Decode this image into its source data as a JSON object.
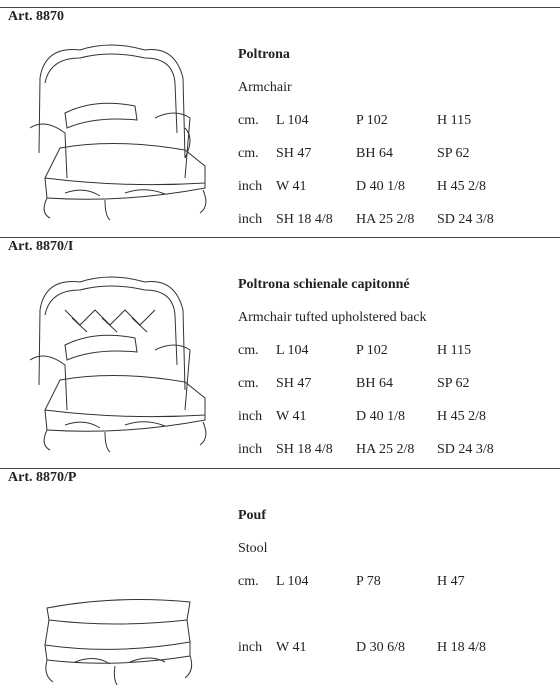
{
  "sections": [
    {
      "article": "Art. 8870",
      "title": "Poltrona",
      "subtitle": "Armchair",
      "rows": [
        {
          "unit": "cm.",
          "values": [
            "L 104",
            "P 102",
            "H 115"
          ]
        },
        {
          "unit": "cm.",
          "values": [
            "SH 47",
            "BH 64",
            "SP 62"
          ]
        },
        {
          "unit": "inch",
          "values": [
            "W 41",
            "D 40 1/8",
            "H 45 2/8"
          ]
        },
        {
          "unit": "inch",
          "values": [
            "SH 18 4/8",
            "HA 25 2/8",
            "SD 24 3/8"
          ]
        }
      ]
    },
    {
      "article": "Art. 8870/I",
      "title": "Poltrona schienale capitonné",
      "subtitle": "Armchair tufted upholstered back",
      "rows": [
        {
          "unit": "cm.",
          "values": [
            "L 104",
            "P 102",
            "H 115"
          ]
        },
        {
          "unit": "cm.",
          "values": [
            "SH 47",
            "BH 64",
            "SP 62"
          ]
        },
        {
          "unit": "inch",
          "values": [
            "W 41",
            "D 40 1/8",
            "H 45 2/8"
          ]
        },
        {
          "unit": "inch",
          "values": [
            "SH 18 4/8",
            "HA 25 2/8",
            "SD 24 3/8"
          ]
        }
      ]
    },
    {
      "article": "Art. 8870/P",
      "title": "Pouf",
      "subtitle": "Stool",
      "rows": [
        {
          "unit": "cm.",
          "values": [
            "L 104",
            "P 78",
            "H 47"
          ]
        },
        {
          "unit": "inch",
          "values": [
            "W 41",
            "D 30 6/8",
            "H 18 4/8"
          ]
        }
      ]
    }
  ]
}
